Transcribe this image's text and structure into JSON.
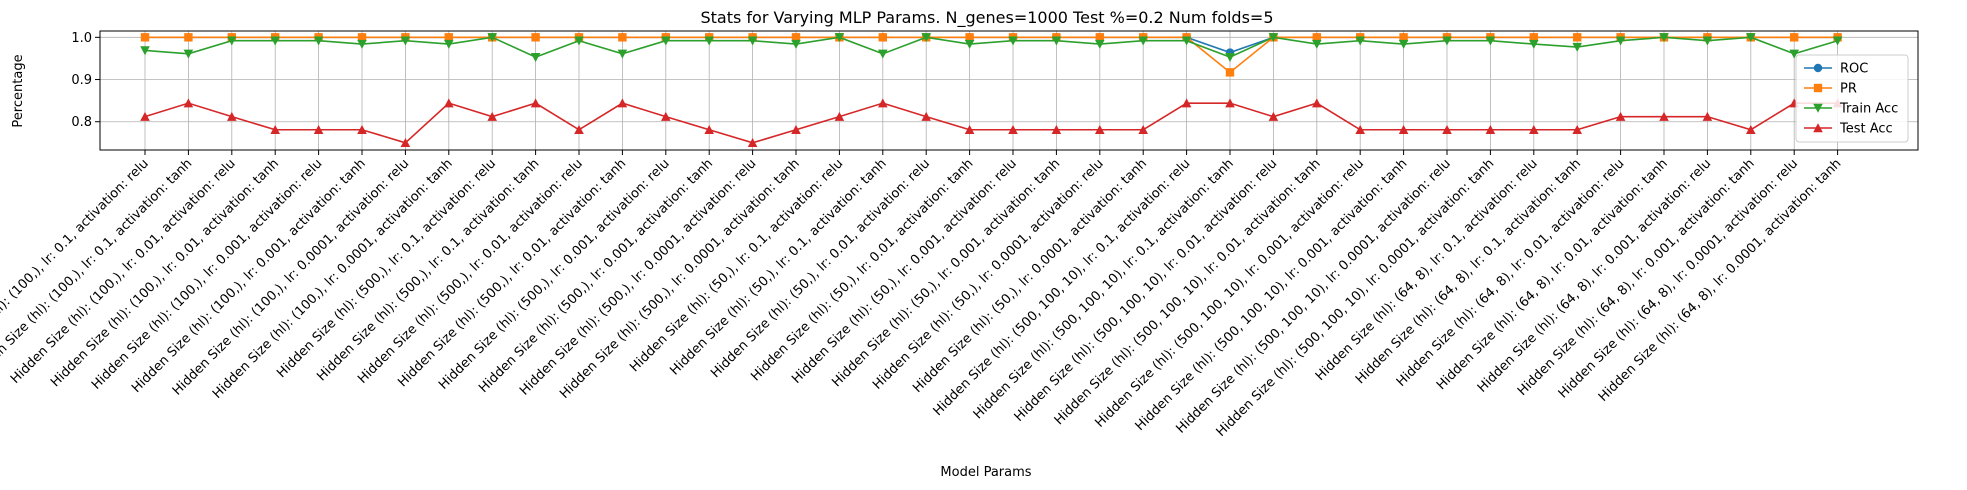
{
  "chart_data": {
    "type": "line",
    "title": "Stats for Varying MLP Params. N_genes=1000 Test %=0.2 Num folds=5",
    "xlabel": "Model Params",
    "ylabel": "Percentage",
    "ylim": [
      0.733,
      1.015
    ],
    "yticks": [
      "0.8",
      "0.9",
      "1.0"
    ],
    "grid": true,
    "legend_position": "right",
    "categories": [
      "Hidden Size (hl): (100,), lr: 0.1, activation: relu",
      "Hidden Size (hl): (100,), lr: 0.1, activation: tanh",
      "Hidden Size (hl): (100,), lr: 0.01, activation: relu",
      "Hidden Size (hl): (100,), lr: 0.01, activation: tanh",
      "Hidden Size (hl): (100,), lr: 0.001, activation: relu",
      "Hidden Size (hl): (100,), lr: 0.001, activation: tanh",
      "Hidden Size (hl): (100,), lr: 0.0001, activation: relu",
      "Hidden Size (hl): (100,), lr: 0.0001, activation: tanh",
      "Hidden Size (hl): (500,), lr: 0.1, activation: relu",
      "Hidden Size (hl): (500,), lr: 0.1, activation: tanh",
      "Hidden Size (hl): (500,), lr: 0.01, activation: relu",
      "Hidden Size (hl): (500,), lr: 0.01, activation: tanh",
      "Hidden Size (hl): (500,), lr: 0.001, activation: relu",
      "Hidden Size (hl): (500,), lr: 0.001, activation: tanh",
      "Hidden Size (hl): (500,), lr: 0.0001, activation: relu",
      "Hidden Size (hl): (500,), lr: 0.0001, activation: tanh",
      "Hidden Size (hl): (50,), lr: 0.1, activation: relu",
      "Hidden Size (hl): (50,), lr: 0.1, activation: tanh",
      "Hidden Size (hl): (50,), lr: 0.01, activation: relu",
      "Hidden Size (hl): (50,), lr: 0.01, activation: tanh",
      "Hidden Size (hl): (50,), lr: 0.001, activation: relu",
      "Hidden Size (hl): (50,), lr: 0.001, activation: tanh",
      "Hidden Size (hl): (50,), lr: 0.0001, activation: relu",
      "Hidden Size (hl): (50,), lr: 0.0001, activation: tanh",
      "Hidden Size (hl): (500, 100, 10), lr: 0.1, activation: relu",
      "Hidden Size (hl): (500, 100, 10), lr: 0.1, activation: tanh",
      "Hidden Size (hl): (500, 100, 10), lr: 0.01, activation: relu",
      "Hidden Size (hl): (500, 100, 10), lr: 0.01, activation: tanh",
      "Hidden Size (hl): (500, 100, 10), lr: 0.001, activation: relu",
      "Hidden Size (hl): (500, 100, 10), lr: 0.001, activation: tanh",
      "Hidden Size (hl): (500, 100, 10), lr: 0.0001, activation: relu",
      "Hidden Size (hl): (500, 100, 10), lr: 0.0001, activation: tanh",
      "Hidden Size (hl): (64, 8), lr: 0.1, activation: relu",
      "Hidden Size (hl): (64, 8), lr: 0.1, activation: tanh",
      "Hidden Size (hl): (64, 8), lr: 0.01, activation: relu",
      "Hidden Size (hl): (64, 8), lr: 0.01, activation: tanh",
      "Hidden Size (hl): (64, 8), lr: 0.001, activation: relu",
      "Hidden Size (hl): (64, 8), lr: 0.001, activation: tanh",
      "Hidden Size (hl): (64, 8), lr: 0.0001, activation: relu",
      "Hidden Size (hl): (64, 8), lr: 0.0001, activation: tanh"
    ],
    "series": [
      {
        "name": "ROC",
        "color": "#1f77b4",
        "marker": "circle",
        "values": [
          1,
          1,
          1,
          1,
          1,
          1,
          1,
          1,
          1,
          1,
          1,
          1,
          1,
          1,
          1,
          1,
          1,
          1,
          1,
          1,
          1,
          1,
          1,
          1,
          1,
          0.964,
          1,
          1,
          1,
          1,
          1,
          1,
          1,
          1,
          1,
          1,
          1,
          1,
          1,
          1
        ]
      },
      {
        "name": "PR",
        "color": "#ff7f0e",
        "marker": "square",
        "values": [
          1,
          1,
          1,
          1,
          1,
          1,
          1,
          1,
          1,
          1,
          1,
          1,
          1,
          1,
          1,
          1,
          1,
          1,
          1,
          1,
          1,
          1,
          1,
          1,
          1,
          0.917,
          1,
          1,
          1,
          1,
          1,
          1,
          1,
          1,
          1,
          1,
          1,
          1,
          1,
          1
        ]
      },
      {
        "name": "Train Acc",
        "color": "#2ca02c",
        "marker": "triangle-down",
        "values": [
          0.969,
          0.961,
          0.992,
          0.992,
          0.992,
          0.984,
          0.992,
          0.984,
          1.0,
          0.953,
          0.992,
          0.961,
          0.992,
          0.992,
          0.992,
          0.984,
          1.0,
          0.961,
          1.0,
          0.984,
          0.992,
          0.992,
          0.984,
          0.992,
          0.992,
          0.953,
          1.0,
          0.984,
          0.992,
          0.984,
          0.992,
          0.992,
          0.984,
          0.977,
          0.992,
          1.0,
          0.992,
          1.0,
          0.961,
          0.992
        ]
      },
      {
        "name": "Test Acc",
        "color": "#d62728",
        "marker": "triangle-up",
        "values": [
          0.812,
          0.844,
          0.812,
          0.781,
          0.781,
          0.781,
          0.75,
          0.844,
          0.812,
          0.844,
          0.781,
          0.844,
          0.812,
          0.781,
          0.75,
          0.781,
          0.812,
          0.844,
          0.812,
          0.781,
          0.781,
          0.781,
          0.781,
          0.781,
          0.844,
          0.844,
          0.812,
          0.844,
          0.781,
          0.781,
          0.781,
          0.781,
          0.781,
          0.781,
          0.812,
          0.812,
          0.812,
          0.781,
          0.844,
          0.844
        ]
      }
    ]
  }
}
